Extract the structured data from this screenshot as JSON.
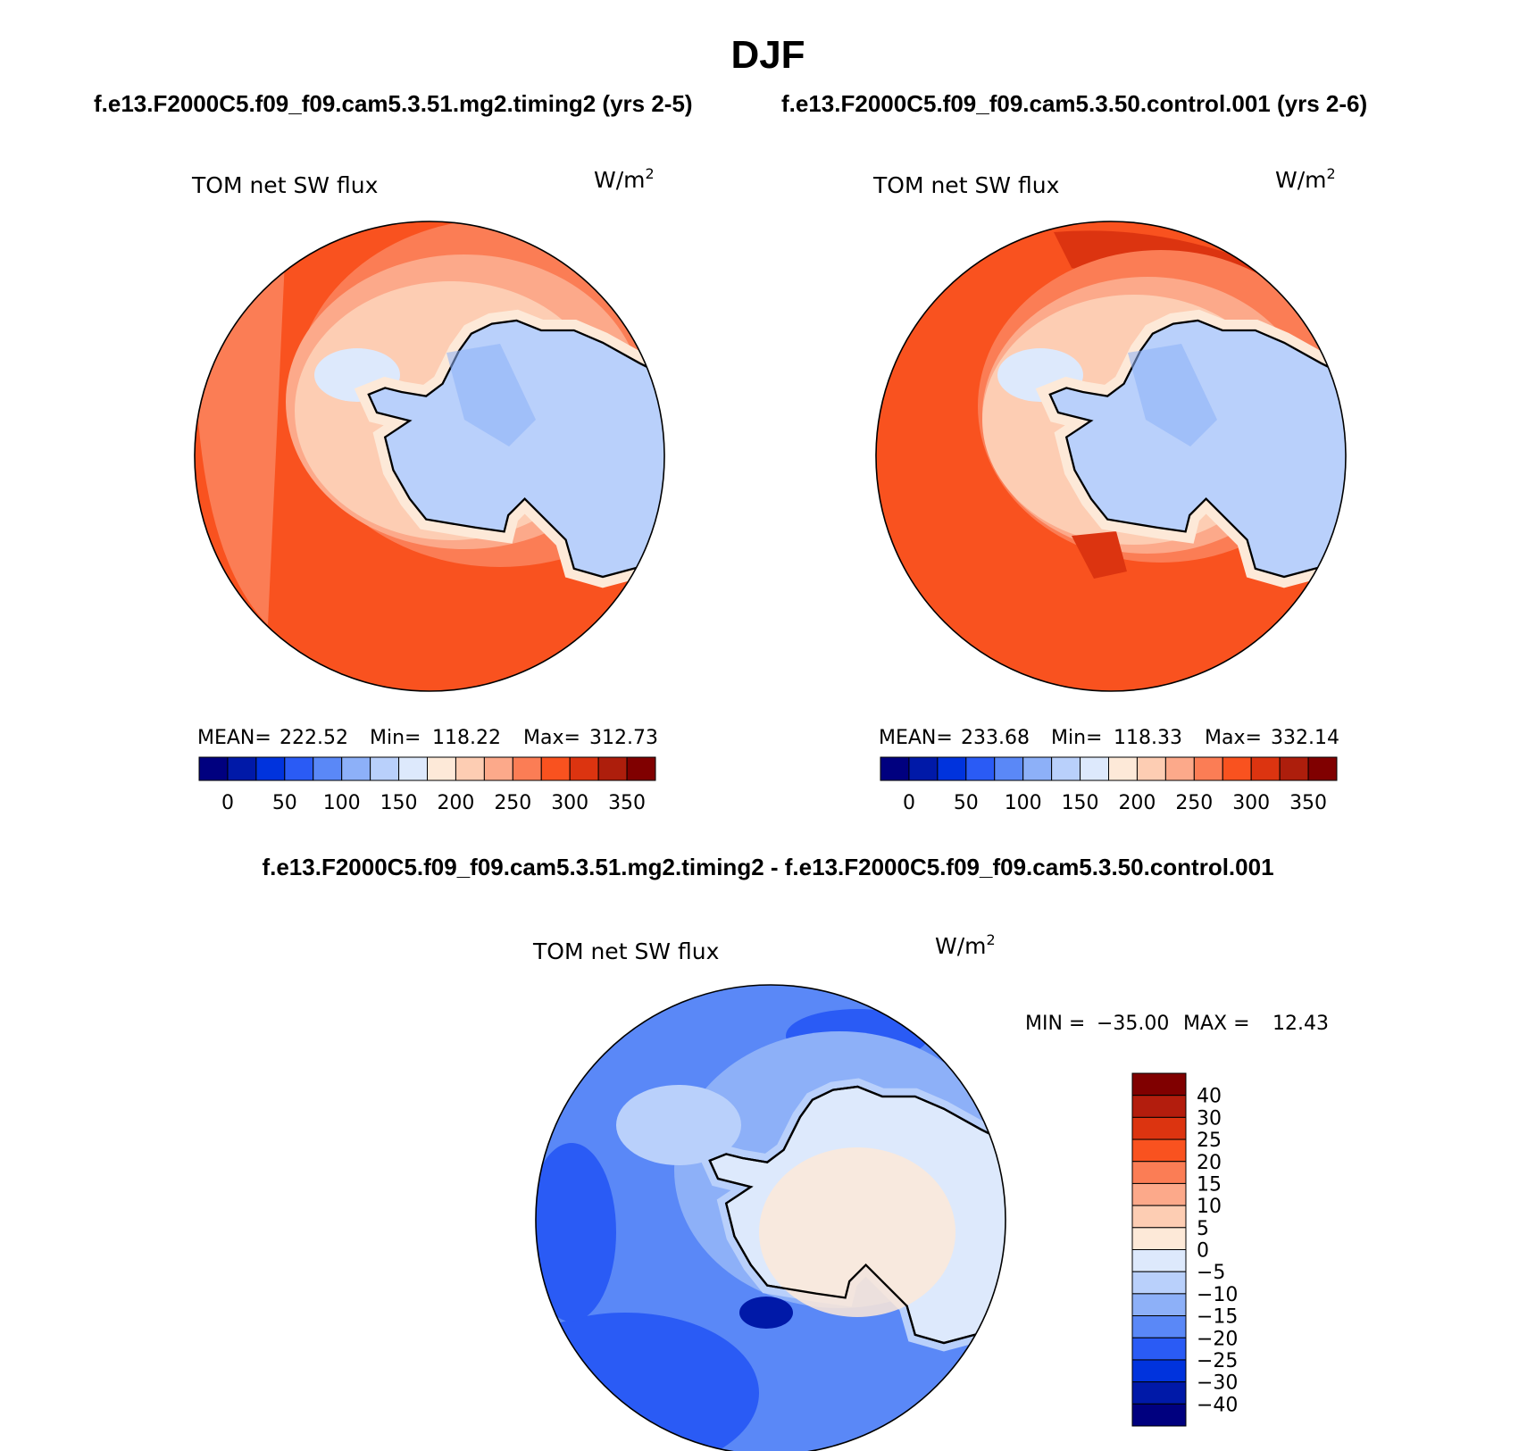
{
  "chart_data": [
    {
      "type": "heatmap",
      "projection": "south-polar-stereographic",
      "panel": "left",
      "case": "f.e13.F2000C5.f09_f09.cam5.3.51.mg2.timing2 (yrs 2-5)",
      "title": "TOM net SW flux",
      "units": "W/m2",
      "stats": {
        "mean_label": "MEAN=",
        "mean": "222.52",
        "min_label": "Min=",
        "min": "118.22",
        "max_label": "Max=",
        "max": "312.73"
      },
      "colorbar_ticks": [
        "0",
        "50",
        "100",
        "150",
        "200",
        "250",
        "300",
        "350"
      ],
      "field_description": "Ocean 250-300 W/m2; Antarctica 125-150 W/m2"
    },
    {
      "type": "heatmap",
      "projection": "south-polar-stereographic",
      "panel": "right",
      "case": "f.e13.F2000C5.f09_f09.cam5.3.50.control.001 (yrs 2-6)",
      "title": "TOM net SW flux",
      "units": "W/m2",
      "stats": {
        "mean_label": "MEAN=",
        "mean": "233.68",
        "min_label": "Min=",
        "min": "118.33",
        "max_label": "Max=",
        "max": "332.14"
      },
      "colorbar_ticks": [
        "0",
        "50",
        "100",
        "150",
        "200",
        "250",
        "300",
        "350"
      ],
      "field_description": "Ocean 275-325 W/m2; Antarctica 125-150 W/m2"
    },
    {
      "type": "heatmap",
      "projection": "south-polar-stereographic",
      "panel": "difference",
      "case": "f.e13.F2000C5.f09_f09.cam5.3.51.mg2.timing2 - f.e13.F2000C5.f09_f09.cam5.3.50.control.001",
      "title": "TOM net SW flux",
      "units": "W/m2",
      "stats": {
        "min_label": "MIN =",
        "min": "−35.00",
        "max_label": "MAX =",
        "max": "12.43"
      },
      "colorbar_ticks": [
        "40",
        "30",
        "25",
        "20",
        "15",
        "10",
        "5",
        "0",
        "−5",
        "−10",
        "−15",
        "−20",
        "−25",
        "−30",
        "−40"
      ]
    }
  ],
  "figure": {
    "title": "DJF",
    "subtitle_left": "f.e13.F2000C5.f09_f09.cam5.3.51.mg2.timing2 (yrs 2-5)",
    "subtitle_right": "f.e13.F2000C5.f09_f09.cam5.3.50.control.001 (yrs 2-6)",
    "diff_title": "f.e13.F2000C5.f09_f09.cam5.3.51.mg2.timing2 - f.e13.F2000C5.f09_f09.cam5.3.50.control.001"
  },
  "colors": {
    "abs_scale": [
      "#00007f",
      "#0019a8",
      "#0033dd",
      "#2a5bf5",
      "#5a88f7",
      "#8db0f8",
      "#b9d0fb",
      "#dde9fc",
      "#fde9d8",
      "#fdcdb3",
      "#fca98a",
      "#fb7d55",
      "#f9521f",
      "#dc3410",
      "#ad1e0c",
      "#800000"
    ],
    "diff_scale": [
      "#800000",
      "#b31d0d",
      "#dc3410",
      "#f9521f",
      "#fb7d55",
      "#fca98a",
      "#fdcdb3",
      "#fde9d8",
      "#dde9fc",
      "#b9d0fb",
      "#8db0f8",
      "#5a88f7",
      "#2a5bf5",
      "#0033dd",
      "#0019a8",
      "#00007f"
    ],
    "antarctica": "#b9d0fb",
    "ocean_left": "#f9521f",
    "ocean_right": "#f9521f",
    "ocean_diff": "#5a88f7"
  }
}
